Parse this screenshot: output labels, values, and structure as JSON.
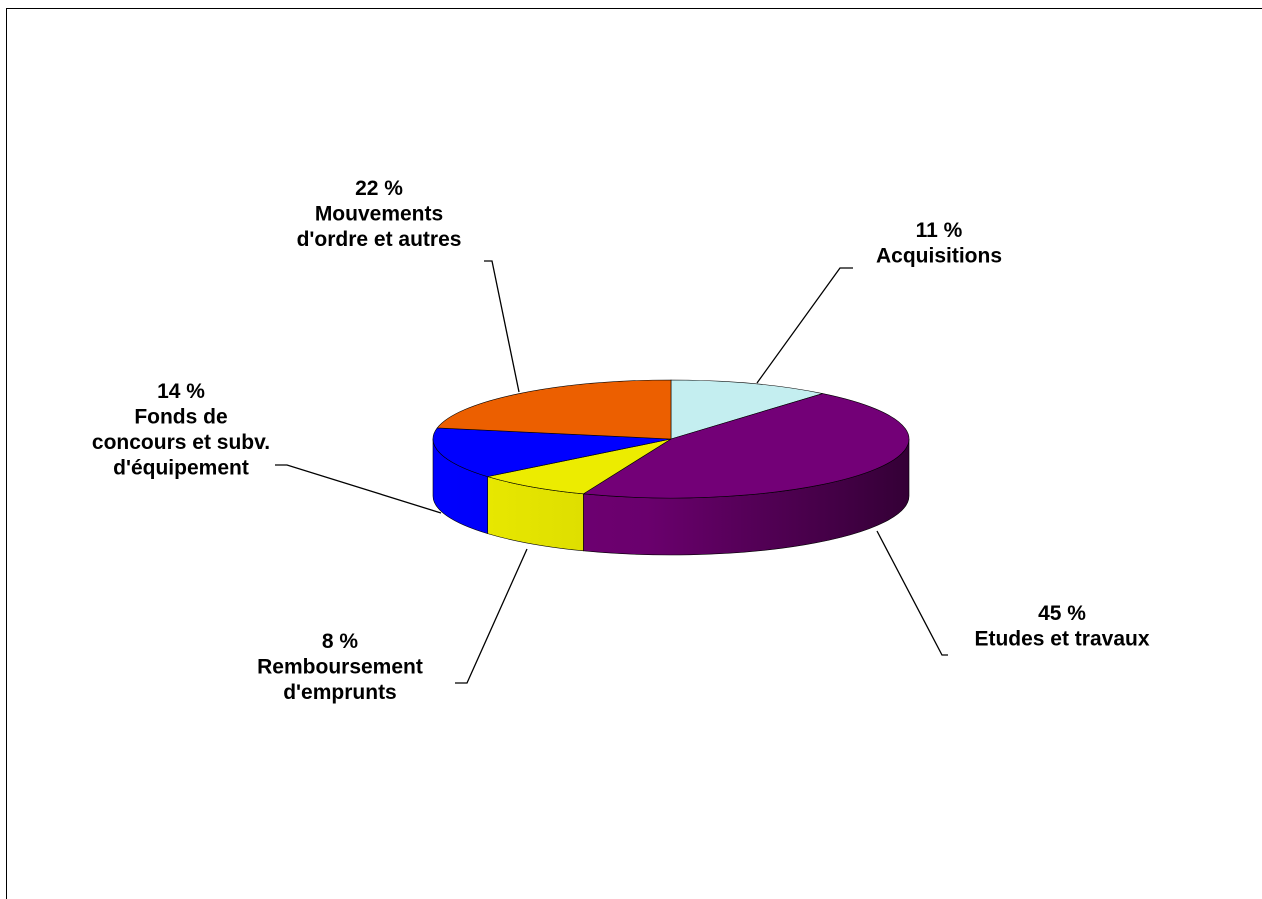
{
  "chart_data": {
    "type": "pie",
    "style": "3d",
    "title": "",
    "slices": [
      {
        "name": "Acquisitions",
        "value": 11,
        "label_pct": "11 %",
        "label_lines": [
          "Acquisitions"
        ],
        "color": "#c4eef0"
      },
      {
        "name": "Etudes et travaux",
        "value": 45,
        "label_pct": "45 %",
        "label_lines": [
          "Etudes et travaux"
        ],
        "color": "#730077"
      },
      {
        "name": "Remboursement d'emprunts",
        "value": 8,
        "label_pct": "8 %",
        "label_lines": [
          "Remboursement",
          "d'emprunts"
        ],
        "color": "#ecec00"
      },
      {
        "name": "Fonds de concours et subv. d'équipement",
        "value": 14,
        "label_pct": "14 %",
        "label_lines": [
          "Fonds de",
          "concours et subv.",
          "d'équipement"
        ],
        "color": "#0000ff"
      },
      {
        "name": "Mouvements d'ordre et autres",
        "value": 22,
        "label_pct": "22 %",
        "label_lines": [
          "Mouvements",
          "d'ordre et autres"
        ],
        "color": "#ec5f00"
      }
    ]
  }
}
